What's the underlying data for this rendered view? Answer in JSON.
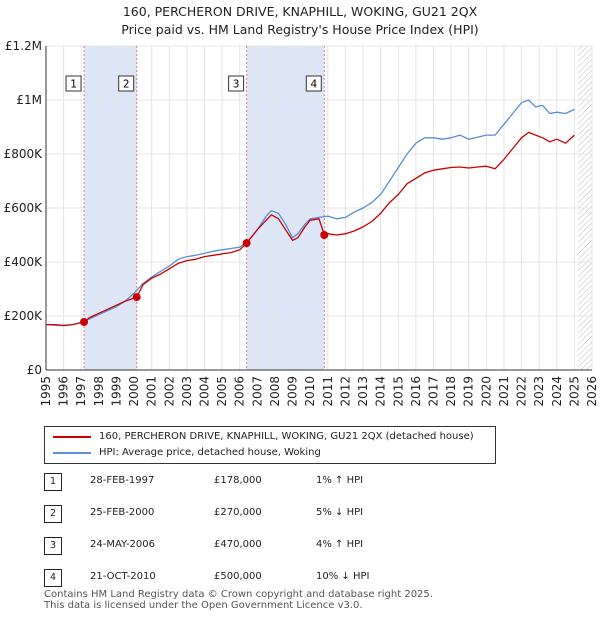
{
  "chart_data": {
    "type": "line",
    "title": "160, PERCHERON DRIVE, KNAPHILL, WOKING, GU21 2QX",
    "subtitle": "Price paid vs. HM Land Registry's House Price Index (HPI)",
    "x_ticks": [
      1995,
      1996,
      1997,
      1998,
      1999,
      2000,
      2001,
      2002,
      2003,
      2004,
      2005,
      2006,
      2007,
      2008,
      2009,
      2010,
      2011,
      2012,
      2013,
      2014,
      2015,
      2016,
      2017,
      2018,
      2019,
      2020,
      2021,
      2022,
      2023,
      2024,
      2025,
      2026
    ],
    "xlim": [
      1995,
      2026
    ],
    "ylim": [
      0,
      1200000
    ],
    "y_ticks": [
      {
        "value": 0,
        "label": "£0"
      },
      {
        "value": 200000,
        "label": "£200K"
      },
      {
        "value": 400000,
        "label": "£400K"
      },
      {
        "value": 600000,
        "label": "£600K"
      },
      {
        "value": 800000,
        "label": "£800K"
      },
      {
        "value": 1000000,
        "label": "£1M"
      },
      {
        "value": 1200000,
        "label": "£1.2M"
      }
    ],
    "grid": true,
    "legend_position": "below",
    "shaded_periods": [
      [
        1997.16,
        2000.15
      ],
      [
        2006.39,
        2010.8
      ]
    ],
    "future_hatch_start": 2025.2,
    "series": [
      {
        "name": "160, PERCHERON DRIVE, KNAPHILL, WOKING, GU21 2QX (detached house)",
        "color": "#cc0000",
        "x": [
          1995.0,
          1995.5,
          1996.0,
          1996.5,
          1997.16,
          1997.5,
          1998.0,
          1998.5,
          1999.0,
          1999.5,
          2000.15,
          2000.5,
          2001.0,
          2001.5,
          2002.0,
          2002.5,
          2003.0,
          2003.5,
          2004.0,
          2004.5,
          2005.0,
          2005.5,
          2006.0,
          2006.39,
          2006.7,
          2007.0,
          2007.5,
          2007.8,
          2008.2,
          2008.6,
          2009.0,
          2009.3,
          2009.7,
          2010.0,
          2010.5,
          2010.8,
          2011.0,
          2011.5,
          2012.0,
          2012.5,
          2013.0,
          2013.5,
          2014.0,
          2014.5,
          2015.0,
          2015.5,
          2016.0,
          2016.5,
          2017.0,
          2017.5,
          2018.0,
          2018.5,
          2019.0,
          2019.5,
          2020.0,
          2020.5,
          2021.0,
          2021.5,
          2022.0,
          2022.4,
          2022.8,
          2023.2,
          2023.6,
          2024.0,
          2024.5,
          2025.0
        ],
        "values": [
          168000,
          168000,
          165000,
          168000,
          178000,
          195000,
          210000,
          225000,
          240000,
          255000,
          270000,
          315000,
          340000,
          355000,
          375000,
          395000,
          405000,
          410000,
          420000,
          425000,
          430000,
          435000,
          445000,
          470000,
          495000,
          520000,
          555000,
          575000,
          560000,
          520000,
          480000,
          490000,
          530000,
          555000,
          560000,
          500000,
          505000,
          500000,
          505000,
          515000,
          530000,
          550000,
          580000,
          620000,
          650000,
          690000,
          710000,
          730000,
          740000,
          745000,
          750000,
          752000,
          748000,
          752000,
          755000,
          745000,
          780000,
          820000,
          860000,
          880000,
          870000,
          860000,
          845000,
          855000,
          840000,
          870000
        ]
      },
      {
        "name": "HPI: Average price, detached house, Woking",
        "color": "#5b8ed6",
        "x": [
          1995.0,
          1995.5,
          1996.0,
          1996.5,
          1997.0,
          1997.5,
          1998.0,
          1998.5,
          1999.0,
          1999.5,
          2000.0,
          2000.5,
          2001.0,
          2001.5,
          2002.0,
          2002.5,
          2003.0,
          2003.5,
          2004.0,
          2004.5,
          2005.0,
          2005.5,
          2006.0,
          2006.5,
          2007.0,
          2007.5,
          2007.8,
          2008.2,
          2008.6,
          2009.0,
          2009.3,
          2009.7,
          2010.0,
          2010.5,
          2011.0,
          2011.5,
          2012.0,
          2012.5,
          2013.0,
          2013.5,
          2014.0,
          2014.5,
          2015.0,
          2015.5,
          2016.0,
          2016.5,
          2017.0,
          2017.5,
          2018.0,
          2018.5,
          2019.0,
          2019.5,
          2020.0,
          2020.5,
          2021.0,
          2021.5,
          2022.0,
          2022.4,
          2022.8,
          2023.2,
          2023.6,
          2024.0,
          2024.5,
          2025.0
        ],
        "values": [
          168000,
          166000,
          164000,
          168000,
          175000,
          190000,
          205000,
          220000,
          235000,
          255000,
          285000,
          320000,
          345000,
          365000,
          385000,
          410000,
          420000,
          425000,
          432000,
          440000,
          445000,
          450000,
          455000,
          480000,
          520000,
          570000,
          590000,
          580000,
          540000,
          490000,
          505000,
          540000,
          560000,
          565000,
          570000,
          560000,
          565000,
          585000,
          600000,
          620000,
          650000,
          700000,
          750000,
          800000,
          840000,
          860000,
          860000,
          855000,
          860000,
          870000,
          855000,
          862000,
          870000,
          870000,
          910000,
          950000,
          990000,
          1000000,
          975000,
          980000,
          950000,
          955000,
          950000,
          965000
        ]
      }
    ],
    "sale_markers": [
      {
        "label": "1",
        "x": 1997.16,
        "value": 178000
      },
      {
        "label": "2",
        "x": 2000.15,
        "value": 270000
      },
      {
        "label": "3",
        "x": 2006.39,
        "value": 470000
      },
      {
        "label": "4",
        "x": 2010.8,
        "value": 500000
      }
    ]
  },
  "legend": {
    "property": "160, PERCHERON DRIVE, KNAPHILL, WOKING, GU21 2QX (detached house)",
    "hpi": "HPI: Average price, detached house, Woking",
    "property_color": "#cc0000",
    "hpi_color": "#5b8ed6"
  },
  "sales": [
    {
      "num": "1",
      "date": "28-FEB-1997",
      "price": "£178,000",
      "hpi": "1% ↑ HPI"
    },
    {
      "num": "2",
      "date": "25-FEB-2000",
      "price": "£270,000",
      "hpi": "5% ↓ HPI"
    },
    {
      "num": "3",
      "date": "24-MAY-2006",
      "price": "£470,000",
      "hpi": "4% ↑ HPI"
    },
    {
      "num": "4",
      "date": "21-OCT-2010",
      "price": "£500,000",
      "hpi": "10% ↓ HPI"
    }
  ],
  "footer": {
    "line1": "Contains HM Land Registry data © Crown copyright and database right 2025.",
    "line2": "This data is licensed under the Open Government Licence v3.0."
  }
}
